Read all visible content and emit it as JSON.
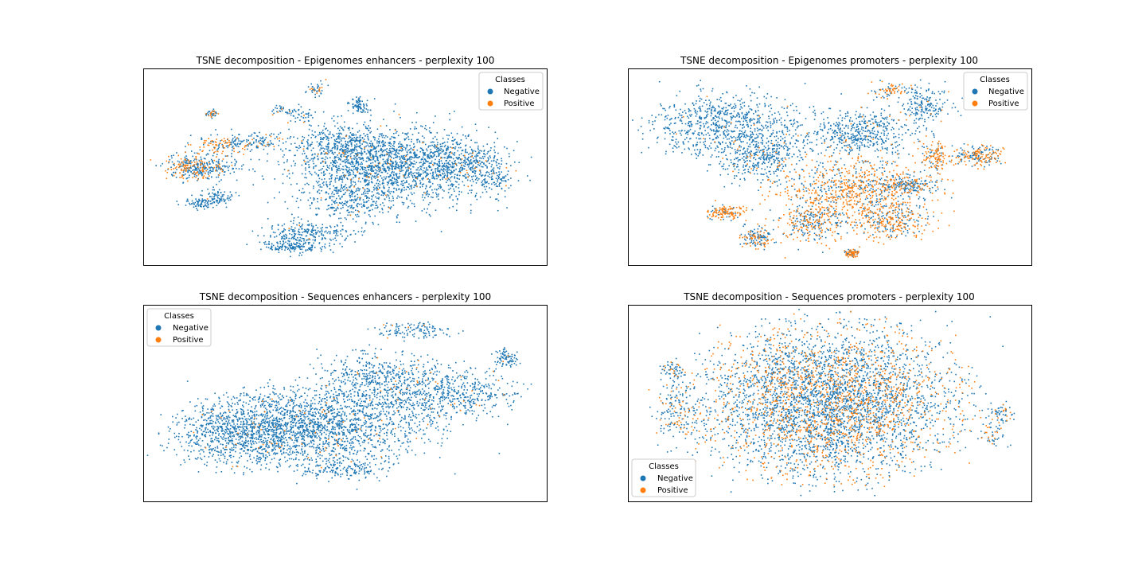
{
  "figure": {
    "background": "#ffffff"
  },
  "chart_data": [
    {
      "type": "scatter",
      "title": "TSNE decomposition - Epigenomes enhancers - perplexity 100",
      "xlabel": "",
      "ylabel": "",
      "ticks": "none",
      "grid": false,
      "legend": {
        "title": "Classes",
        "placement": "upper right",
        "entries": [
          {
            "label": "Negative",
            "color": "#1f77b4"
          },
          {
            "label": "Positive",
            "color": "#ff7f0e"
          }
        ]
      },
      "series": [
        {
          "name": "Negative",
          "color": "#1f77b4"
        },
        {
          "name": "Positive",
          "color": "#ff7f0e"
        }
      ]
    },
    {
      "type": "scatter",
      "title": "TSNE decomposition - Epigenomes promoters - perplexity 100",
      "xlabel": "",
      "ylabel": "",
      "ticks": "none",
      "grid": false,
      "legend": {
        "title": "Classes",
        "placement": "upper right",
        "entries": [
          {
            "label": "Negative",
            "color": "#1f77b4"
          },
          {
            "label": "Positive",
            "color": "#ff7f0e"
          }
        ]
      },
      "series": [
        {
          "name": "Negative",
          "color": "#1f77b4"
        },
        {
          "name": "Positive",
          "color": "#ff7f0e"
        }
      ]
    },
    {
      "type": "scatter",
      "title": "TSNE decomposition - Sequences enhancers - perplexity 100",
      "xlabel": "",
      "ylabel": "",
      "ticks": "none",
      "grid": false,
      "legend": {
        "title": "Classes",
        "placement": "upper left",
        "entries": [
          {
            "label": "Negative",
            "color": "#1f77b4"
          },
          {
            "label": "Positive",
            "color": "#ff7f0e"
          }
        ]
      },
      "series": [
        {
          "name": "Negative",
          "color": "#1f77b4"
        },
        {
          "name": "Positive",
          "color": "#ff7f0e"
        }
      ]
    },
    {
      "type": "scatter",
      "title": "TSNE decomposition - Sequences promoters - perplexity 100",
      "xlabel": "",
      "ylabel": "",
      "ticks": "none",
      "grid": false,
      "legend": {
        "title": "Classes",
        "placement": "lower left",
        "entries": [
          {
            "label": "Negative",
            "color": "#1f77b4"
          },
          {
            "label": "Positive",
            "color": "#ff7f0e"
          }
        ]
      },
      "series": [
        {
          "name": "Negative",
          "color": "#1f77b4"
        },
        {
          "name": "Positive",
          "color": "#ff7f0e"
        }
      ]
    }
  ]
}
